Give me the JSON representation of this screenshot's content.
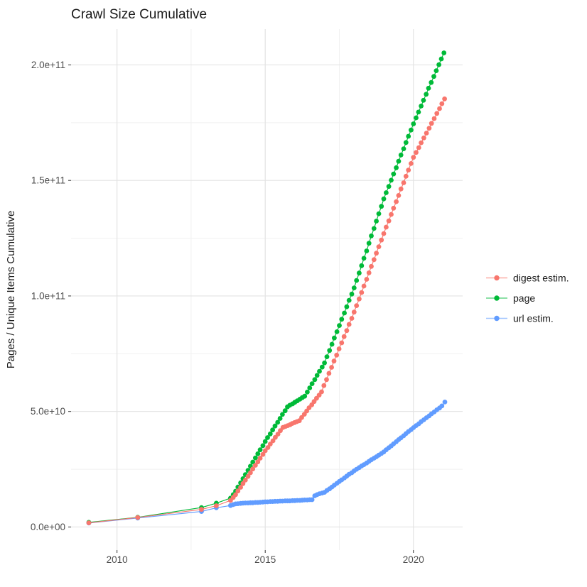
{
  "title": "Crawl Size Cumulative",
  "axes": {
    "y_label": "Pages / Unique Items Cumulative",
    "y_ticks": [
      {
        "v": 0,
        "label": "0.0e+00"
      },
      {
        "v": 5,
        "label": "5.0e+10"
      },
      {
        "v": 10,
        "label": "1.0e+11"
      },
      {
        "v": 15,
        "label": "1.5e+11"
      },
      {
        "v": 20,
        "label": "2.0e+11"
      }
    ],
    "y_minor": [
      2.5,
      7.5,
      12.5,
      17.5
    ],
    "x_ticks": [
      {
        "v": 2010,
        "label": "2010"
      },
      {
        "v": 2015,
        "label": "2015"
      },
      {
        "v": 2020,
        "label": "2020"
      }
    ],
    "x_minor": [
      2012.5,
      2017.5
    ]
  },
  "legend": {
    "position": "right",
    "items": [
      {
        "label": "digest estim.",
        "color": "#F8766D",
        "icon": "point-line-key-icon"
      },
      {
        "label": "page",
        "color": "#00BA38",
        "icon": "point-line-key-icon"
      },
      {
        "label": "url estim.",
        "color": "#619CFF",
        "icon": "point-line-key-icon"
      }
    ]
  },
  "style_colors": {
    "grid_major": "#e3e3e3",
    "grid_minor": "#f1f1f1",
    "tick_mark": "#333333",
    "tick_text": "#4d4d4d",
    "background": "#ffffff"
  },
  "chart_data": {
    "type": "line",
    "title": "Crawl Size Cumulative",
    "xlabel": "",
    "ylabel": "Pages / Unique Items Cumulative",
    "x_range": [
      2008.45,
      2021.66
    ],
    "y_range": [
      -1,
      21.55
    ],
    "value_scale": 10000000000.0,
    "grid": true,
    "legend_position": "right",
    "marker": "point",
    "draw_order": [
      "page",
      "url estim.",
      "digest estim."
    ],
    "series": [
      {
        "name": "digest estim.",
        "color": "#F8766D",
        "points": [
          [
            2009.05,
            0.18
          ],
          [
            2010.7,
            0.41
          ],
          [
            2012.85,
            0.76
          ],
          [
            2013.35,
            0.92
          ],
          [
            2013.83,
            1.15
          ],
          [
            2013.92,
            1.28
          ],
          [
            2014.0,
            1.4
          ],
          [
            2014.08,
            1.56
          ],
          [
            2014.17,
            1.72
          ],
          [
            2014.25,
            1.88
          ],
          [
            2014.33,
            2.03
          ],
          [
            2014.42,
            2.19
          ],
          [
            2014.5,
            2.35
          ],
          [
            2014.58,
            2.51
          ],
          [
            2014.67,
            2.67
          ],
          [
            2014.75,
            2.82
          ],
          [
            2014.83,
            2.98
          ],
          [
            2014.92,
            3.14
          ],
          [
            2015.0,
            3.3
          ],
          [
            2015.09,
            3.44
          ],
          [
            2015.17,
            3.59
          ],
          [
            2015.26,
            3.73
          ],
          [
            2015.34,
            3.88
          ],
          [
            2015.43,
            4.02
          ],
          [
            2015.51,
            4.17
          ],
          [
            2015.6,
            4.31
          ],
          [
            2015.68,
            4.35
          ],
          [
            2015.76,
            4.39
          ],
          [
            2015.84,
            4.43
          ],
          [
            2015.91,
            4.48
          ],
          [
            2015.99,
            4.52
          ],
          [
            2016.07,
            4.56
          ],
          [
            2016.15,
            4.6
          ],
          [
            2016.23,
            4.74
          ],
          [
            2016.32,
            4.88
          ],
          [
            2016.4,
            5.02
          ],
          [
            2016.48,
            5.16
          ],
          [
            2016.57,
            5.29
          ],
          [
            2016.65,
            5.43
          ],
          [
            2016.73,
            5.57
          ],
          [
            2016.82,
            5.71
          ],
          [
            2016.9,
            5.85
          ],
          [
            2016.98,
            6.12
          ],
          [
            2017.07,
            6.38
          ],
          [
            2017.15,
            6.65
          ],
          [
            2017.24,
            6.91
          ],
          [
            2017.32,
            7.18
          ],
          [
            2017.41,
            7.44
          ],
          [
            2017.49,
            7.71
          ],
          [
            2017.58,
            7.97
          ],
          [
            2017.66,
            8.24
          ],
          [
            2017.75,
            8.5
          ],
          [
            2017.83,
            8.77
          ],
          [
            2017.92,
            9.03
          ],
          [
            2018.0,
            9.3
          ],
          [
            2018.08,
            9.58
          ],
          [
            2018.17,
            9.87
          ],
          [
            2018.25,
            10.15
          ],
          [
            2018.33,
            10.43
          ],
          [
            2018.42,
            10.72
          ],
          [
            2018.5,
            11.0
          ],
          [
            2018.58,
            11.28
          ],
          [
            2018.67,
            11.57
          ],
          [
            2018.75,
            11.85
          ],
          [
            2018.83,
            12.13
          ],
          [
            2018.92,
            12.42
          ],
          [
            2019.0,
            12.7
          ],
          [
            2019.08,
            12.98
          ],
          [
            2019.17,
            13.25
          ],
          [
            2019.25,
            13.53
          ],
          [
            2019.33,
            13.8
          ],
          [
            2019.42,
            14.08
          ],
          [
            2019.5,
            14.35
          ],
          [
            2019.58,
            14.63
          ],
          [
            2019.67,
            14.9
          ],
          [
            2019.75,
            15.18
          ],
          [
            2019.83,
            15.45
          ],
          [
            2019.92,
            15.73
          ],
          [
            2020.0,
            16.0
          ],
          [
            2020.09,
            16.21
          ],
          [
            2020.18,
            16.42
          ],
          [
            2020.26,
            16.63
          ],
          [
            2020.35,
            16.84
          ],
          [
            2020.44,
            17.05
          ],
          [
            2020.53,
            17.26
          ],
          [
            2020.61,
            17.47
          ],
          [
            2020.7,
            17.68
          ],
          [
            2020.79,
            17.9
          ],
          [
            2020.88,
            18.11
          ],
          [
            2020.96,
            18.32
          ],
          [
            2021.05,
            18.53
          ]
        ]
      },
      {
        "name": "page",
        "color": "#00BA38",
        "points": [
          [
            2009.05,
            0.2
          ],
          [
            2010.7,
            0.42
          ],
          [
            2012.85,
            0.84
          ],
          [
            2013.35,
            1.03
          ],
          [
            2013.83,
            1.25
          ],
          [
            2013.92,
            1.4
          ],
          [
            2014.0,
            1.55
          ],
          [
            2014.08,
            1.73
          ],
          [
            2014.17,
            1.91
          ],
          [
            2014.25,
            2.09
          ],
          [
            2014.33,
            2.27
          ],
          [
            2014.42,
            2.45
          ],
          [
            2014.5,
            2.63
          ],
          [
            2014.58,
            2.81
          ],
          [
            2014.67,
            2.99
          ],
          [
            2014.75,
            3.17
          ],
          [
            2014.83,
            3.34
          ],
          [
            2014.92,
            3.52
          ],
          [
            2015.0,
            3.7
          ],
          [
            2015.08,
            3.87
          ],
          [
            2015.17,
            4.03
          ],
          [
            2015.25,
            4.2
          ],
          [
            2015.33,
            4.37
          ],
          [
            2015.42,
            4.53
          ],
          [
            2015.5,
            4.7
          ],
          [
            2015.58,
            4.87
          ],
          [
            2015.67,
            5.03
          ],
          [
            2015.75,
            5.2
          ],
          [
            2015.83,
            5.27
          ],
          [
            2015.92,
            5.33
          ],
          [
            2016.0,
            5.4
          ],
          [
            2016.08,
            5.46
          ],
          [
            2016.17,
            5.53
          ],
          [
            2016.25,
            5.6
          ],
          [
            2016.33,
            5.66
          ],
          [
            2016.42,
            5.84
          ],
          [
            2016.5,
            6.02
          ],
          [
            2016.58,
            6.2
          ],
          [
            2016.67,
            6.38
          ],
          [
            2016.75,
            6.56
          ],
          [
            2016.83,
            6.74
          ],
          [
            2016.92,
            6.92
          ],
          [
            2017.0,
            7.1
          ],
          [
            2017.08,
            7.37
          ],
          [
            2017.17,
            7.64
          ],
          [
            2017.25,
            7.91
          ],
          [
            2017.33,
            8.18
          ],
          [
            2017.42,
            8.45
          ],
          [
            2017.5,
            8.72
          ],
          [
            2017.58,
            8.99
          ],
          [
            2017.67,
            9.26
          ],
          [
            2017.75,
            9.53
          ],
          [
            2017.83,
            9.81
          ],
          [
            2017.92,
            10.08
          ],
          [
            2018.0,
            10.35
          ],
          [
            2018.08,
            10.67
          ],
          [
            2018.17,
            10.99
          ],
          [
            2018.25,
            11.31
          ],
          [
            2018.33,
            11.63
          ],
          [
            2018.42,
            11.95
          ],
          [
            2018.5,
            12.28
          ],
          [
            2018.58,
            12.6
          ],
          [
            2018.67,
            12.92
          ],
          [
            2018.75,
            13.24
          ],
          [
            2018.83,
            13.56
          ],
          [
            2018.92,
            13.88
          ],
          [
            2019.0,
            14.2
          ],
          [
            2019.08,
            14.47
          ],
          [
            2019.17,
            14.74
          ],
          [
            2019.25,
            15.01
          ],
          [
            2019.33,
            15.28
          ],
          [
            2019.42,
            15.55
          ],
          [
            2019.5,
            15.83
          ],
          [
            2019.58,
            16.1
          ],
          [
            2019.67,
            16.37
          ],
          [
            2019.75,
            16.64
          ],
          [
            2019.83,
            16.91
          ],
          [
            2019.92,
            17.18
          ],
          [
            2020.0,
            17.45
          ],
          [
            2020.09,
            17.71
          ],
          [
            2020.17,
            17.96
          ],
          [
            2020.26,
            18.22
          ],
          [
            2020.34,
            18.47
          ],
          [
            2020.43,
            18.73
          ],
          [
            2020.51,
            18.99
          ],
          [
            2020.6,
            19.24
          ],
          [
            2020.69,
            19.5
          ],
          [
            2020.77,
            19.75
          ],
          [
            2020.86,
            20.01
          ],
          [
            2020.94,
            20.26
          ],
          [
            2021.03,
            20.52
          ]
        ]
      },
      {
        "name": "url estim.",
        "color": "#619CFF",
        "points": [
          [
            2009.05,
            0.17
          ],
          [
            2010.7,
            0.39
          ],
          [
            2012.85,
            0.67
          ],
          [
            2013.35,
            0.83
          ],
          [
            2013.83,
            0.93
          ],
          [
            2013.92,
            0.97
          ],
          [
            2014.0,
            1.0
          ],
          [
            2014.08,
            1.01
          ],
          [
            2014.17,
            1.02
          ],
          [
            2014.25,
            1.03
          ],
          [
            2014.33,
            1.04
          ],
          [
            2014.42,
            1.04
          ],
          [
            2014.5,
            1.05
          ],
          [
            2014.58,
            1.05
          ],
          [
            2014.67,
            1.06
          ],
          [
            2014.75,
            1.06
          ],
          [
            2014.83,
            1.07
          ],
          [
            2014.92,
            1.08
          ],
          [
            2015.0,
            1.09
          ],
          [
            2015.08,
            1.09
          ],
          [
            2015.17,
            1.1
          ],
          [
            2015.25,
            1.1
          ],
          [
            2015.33,
            1.11
          ],
          [
            2015.42,
            1.11
          ],
          [
            2015.5,
            1.12
          ],
          [
            2015.58,
            1.12
          ],
          [
            2015.67,
            1.13
          ],
          [
            2015.75,
            1.13
          ],
          [
            2015.83,
            1.13
          ],
          [
            2015.92,
            1.14
          ],
          [
            2016.0,
            1.14
          ],
          [
            2016.08,
            1.15
          ],
          [
            2016.17,
            1.15
          ],
          [
            2016.25,
            1.16
          ],
          [
            2016.33,
            1.17
          ],
          [
            2016.42,
            1.17
          ],
          [
            2016.5,
            1.18
          ],
          [
            2016.58,
            1.18
          ],
          [
            2016.67,
            1.35
          ],
          [
            2016.75,
            1.4
          ],
          [
            2016.83,
            1.44
          ],
          [
            2016.92,
            1.47
          ],
          [
            2017.0,
            1.5
          ],
          [
            2017.08,
            1.58
          ],
          [
            2017.17,
            1.65
          ],
          [
            2017.25,
            1.73
          ],
          [
            2017.33,
            1.81
          ],
          [
            2017.42,
            1.89
          ],
          [
            2017.5,
            1.97
          ],
          [
            2017.58,
            2.04
          ],
          [
            2017.67,
            2.12
          ],
          [
            2017.75,
            2.2
          ],
          [
            2017.83,
            2.28
          ],
          [
            2017.92,
            2.35
          ],
          [
            2018.0,
            2.43
          ],
          [
            2018.08,
            2.5
          ],
          [
            2018.17,
            2.57
          ],
          [
            2018.25,
            2.64
          ],
          [
            2018.33,
            2.7
          ],
          [
            2018.42,
            2.77
          ],
          [
            2018.5,
            2.84
          ],
          [
            2018.58,
            2.91
          ],
          [
            2018.67,
            2.98
          ],
          [
            2018.75,
            3.04
          ],
          [
            2018.83,
            3.11
          ],
          [
            2018.92,
            3.18
          ],
          [
            2019.0,
            3.25
          ],
          [
            2019.08,
            3.34
          ],
          [
            2019.17,
            3.43
          ],
          [
            2019.25,
            3.51
          ],
          [
            2019.33,
            3.6
          ],
          [
            2019.42,
            3.69
          ],
          [
            2019.5,
            3.78
          ],
          [
            2019.58,
            3.86
          ],
          [
            2019.67,
            3.95
          ],
          [
            2019.75,
            4.04
          ],
          [
            2019.83,
            4.13
          ],
          [
            2019.92,
            4.21
          ],
          [
            2020.0,
            4.3
          ],
          [
            2020.09,
            4.39
          ],
          [
            2020.18,
            4.47
          ],
          [
            2020.26,
            4.56
          ],
          [
            2020.35,
            4.64
          ],
          [
            2020.44,
            4.73
          ],
          [
            2020.53,
            4.81
          ],
          [
            2020.61,
            4.9
          ],
          [
            2020.7,
            4.98
          ],
          [
            2020.79,
            5.07
          ],
          [
            2020.88,
            5.15
          ],
          [
            2020.96,
            5.24
          ],
          [
            2021.06,
            5.41
          ]
        ]
      }
    ]
  }
}
